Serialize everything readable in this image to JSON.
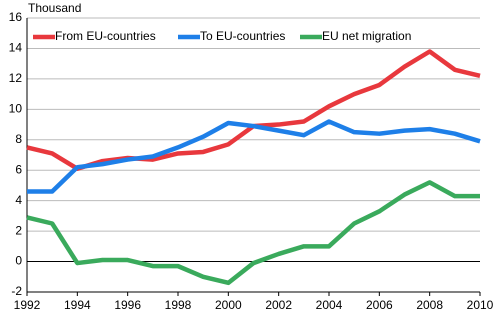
{
  "chart_data": {
    "type": "line",
    "y_label": "Thousand",
    "x": [
      1992,
      1993,
      1994,
      1995,
      1996,
      1997,
      1998,
      1999,
      2000,
      2001,
      2002,
      2003,
      2004,
      2005,
      2006,
      2007,
      2008,
      2009,
      2010
    ],
    "series": [
      {
        "name": "From EU-countries",
        "color": "#e8383d",
        "values": [
          7.5,
          7.1,
          6.1,
          6.6,
          6.8,
          6.7,
          7.1,
          7.2,
          7.7,
          8.9,
          9.0,
          9.2,
          10.2,
          11.0,
          11.6,
          12.8,
          13.8,
          12.6,
          12.2
        ]
      },
      {
        "name": "To EU-countries",
        "color": "#1e7fe8",
        "values": [
          4.6,
          4.6,
          6.2,
          6.4,
          6.7,
          6.9,
          7.5,
          8.2,
          9.1,
          8.9,
          8.6,
          8.3,
          9.2,
          8.5,
          8.4,
          8.6,
          8.7,
          8.4,
          7.9
        ]
      },
      {
        "name": "EU net migration",
        "color": "#3aaa5c",
        "values": [
          2.9,
          2.5,
          -0.1,
          0.1,
          0.1,
          -0.3,
          -0.3,
          -1.0,
          -1.4,
          -0.1,
          0.5,
          1.0,
          1.0,
          2.5,
          3.3,
          4.4,
          5.2,
          4.3,
          4.3
        ]
      }
    ],
    "xlim": [
      1992,
      2010
    ],
    "xticks": [
      1992,
      1994,
      1996,
      1998,
      2000,
      2002,
      2004,
      2006,
      2008,
      2010
    ],
    "ylim": [
      -2,
      16
    ],
    "yticks": [
      -2,
      0,
      2,
      4,
      6,
      8,
      10,
      12,
      14,
      16
    ],
    "grid": true
  }
}
